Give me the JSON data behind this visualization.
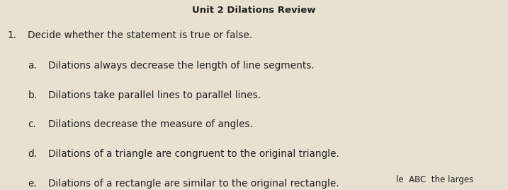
{
  "title": "Unit 2 Dilations Review",
  "question_num": "1.",
  "question_text": "Decide whether the statement is true or false.",
  "items": [
    {
      "label": "a.",
      "text": "Dilations always decrease the length of line segments."
    },
    {
      "label": "b.",
      "text": "Dilations take parallel lines to parallel lines."
    },
    {
      "label": "c.",
      "text": "Dilations decrease the measure of angles."
    },
    {
      "label": "d.",
      "text": "Dilations of a triangle are congruent to the original triangle."
    },
    {
      "label": "e.",
      "text": "Dilations of a rectangle are similar to the original rectangle."
    }
  ],
  "footer": "le  ABC  the larges",
  "bg_color": "#e8e0d0",
  "text_color": "#222222",
  "title_color": "#222222",
  "title_fontsize": 9.5,
  "question_fontsize": 9.8,
  "item_fontsize": 9.8,
  "footer_fontsize": 8.5
}
